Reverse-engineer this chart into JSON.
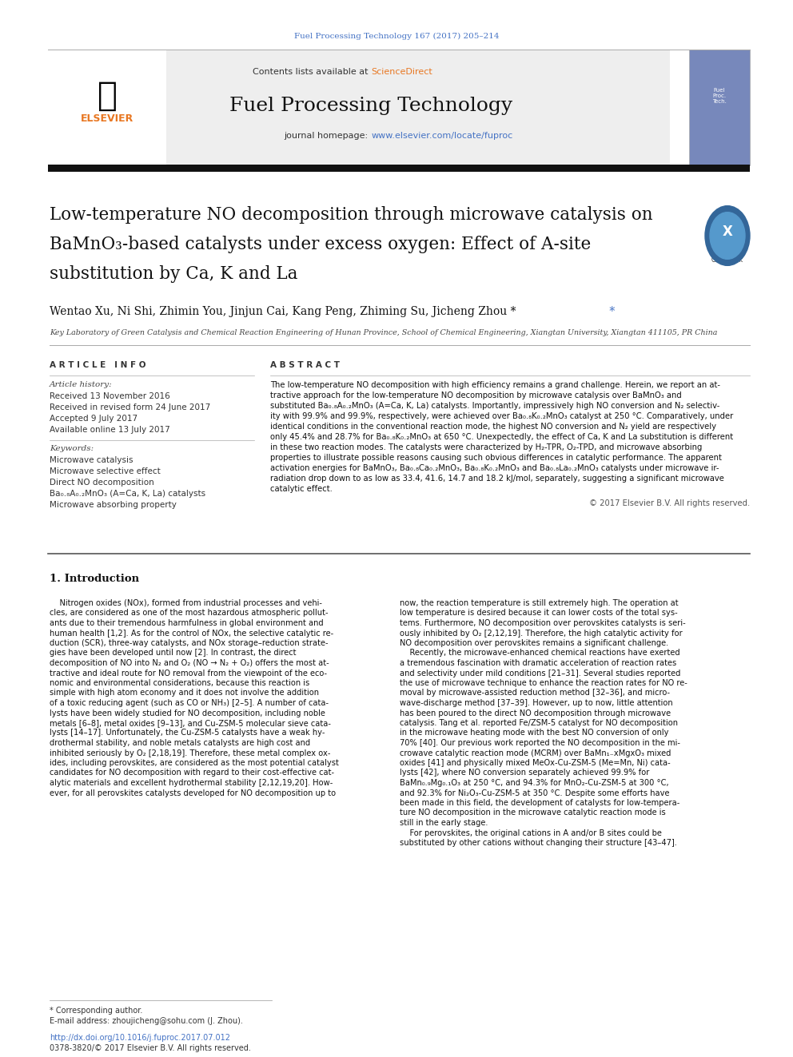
{
  "page_width": 9.92,
  "page_height": 13.23,
  "bg_color": "#ffffff",
  "journal_ref": "Fuel Processing Technology 167 (2017) 205–214",
  "journal_ref_color": "#4472c4",
  "header_bg": "#f0f0f0",
  "contents_text": "Contents lists available at ",
  "sciencedirect_text": "ScienceDirect",
  "sciencedirect_color": "#e87722",
  "journal_title": "Fuel Processing Technology",
  "journal_homepage_prefix": "journal homepage: ",
  "journal_homepage_url": "www.elsevier.com/locate/fuproc",
  "journal_homepage_color": "#4472c4",
  "elsevier_color": "#e87722",
  "paper_title_line1": "Low-temperature NO decomposition through microwave catalysis on",
  "paper_title_line2": "BaMnO₃-based catalysts under excess oxygen: Effect of A-site",
  "paper_title_line3": "substitution by Ca, K and La",
  "authors": "Wentao Xu, Ni Shi, Zhimin You, Jinjun Cai, Kang Peng, Zhiming Su, Jicheng Zhou *",
  "affiliation": "Key Laboratory of Green Catalysis and Chemical Reaction Engineering of Hunan Province, School of Chemical Engineering, Xiangtan University, Xiangtan 411105, PR China",
  "article_info_header": "A R T I C L E   I N F O",
  "article_history_label": "Article history:",
  "received_text": "Received 13 November 2016",
  "revised_text": "Received in revised form 24 June 2017",
  "accepted_text": "Accepted 9 July 2017",
  "online_text": "Available online 13 July 2017",
  "keywords_label": "Keywords:",
  "keyword1": "Microwave catalysis",
  "keyword2": "Microwave selective effect",
  "keyword3": "Direct NO decomposition",
  "keyword4": "Ba₀.₈A₀.₂MnO₃ (A=Ca, K, La) catalysts",
  "keyword5": "Microwave absorbing property",
  "abstract_header": "A B S T R A C T",
  "copyright_text": "© 2017 Elsevier B.V. All rights reserved.",
  "section1_title": "1. Introduction",
  "footnote_star": "* Corresponding author.",
  "footnote_email": "E-mail address: zhoujicheng@sohu.com (J. Zhou).",
  "doi_text": "http://dx.doi.org/10.1016/j.fuproc.2017.07.012",
  "issn_text": "0378-3820/© 2017 Elsevier B.V. All rights reserved.",
  "abstract_lines": [
    "The low-temperature NO decomposition with high efficiency remains a grand challenge. Herein, we report an at-",
    "tractive approach for the low-temperature NO decomposition by microwave catalysis over BaMnO₃ and",
    "substituted Ba₀.₈A₀.₂MnO₃ (A=Ca, K, La) catalysts. Importantly, impressively high NO conversion and N₂ selectiv-",
    "ity with 99.9% and 99.9%, respectively, were achieved over Ba₀.₈K₀.₂MnO₃ catalyst at 250 °C. Comparatively, under",
    "identical conditions in the conventional reaction mode, the highest NO conversion and N₂ yield are respectively",
    "only 45.4% and 28.7% for Ba₀.₈K₀.₂MnO₃ at 650 °C. Unexpectedly, the effect of Ca, K and La substitution is different",
    "in these two reaction modes. The catalysts were characterized by H₂-TPR, O₂-TPD, and microwave absorbing",
    "properties to illustrate possible reasons causing such obvious differences in catalytic performance. The apparent",
    "activation energies for BaMnO₃, Ba₀.₈Ca₀.₂MnO₃, Ba₀.₈K₀.₂MnO₃ and Ba₀.₈La₀.₂MnO₃ catalysts under microwave ir-",
    "radiation drop down to as low as 33.4, 41.6, 14.7 and 18.2 kJ/mol, separately, suggesting a significant microwave",
    "catalytic effect."
  ],
  "intro_col1_lines": [
    "    Nitrogen oxides (NOx), formed from industrial processes and vehi-",
    "cles, are considered as one of the most hazardous atmospheric pollut-",
    "ants due to their tremendous harmfulness in global environment and",
    "human health [1,2]. As for the control of NOx, the selective catalytic re-",
    "duction (SCR), three-way catalysts, and NOx storage–reduction strate-",
    "gies have been developed until now [2]. In contrast, the direct",
    "decomposition of NO into N₂ and O₂ (NO → N₂ + O₂) offers the most at-",
    "tractive and ideal route for NO removal from the viewpoint of the eco-",
    "nomic and environmental considerations, because this reaction is",
    "simple with high atom economy and it does not involve the addition",
    "of a toxic reducing agent (such as CO or NH₃) [2–5]. A number of cata-",
    "lysts have been widely studied for NO decomposition, including noble",
    "metals [6–8], metal oxides [9–13], and Cu-ZSM-5 molecular sieve cata-",
    "lysts [14–17]. Unfortunately, the Cu-ZSM-5 catalysts have a weak hy-",
    "drothermal stability, and noble metals catalysts are high cost and",
    "inhibited seriously by O₂ [2,18,19]. Therefore, these metal complex ox-",
    "ides, including perovskites, are considered as the most potential catalyst",
    "candidates for NO decomposition with regard to their cost-effective cat-",
    "alytic materials and excellent hydrothermal stability [2,12,19,20]. How-",
    "ever, for all perovskites catalysts developed for NO decomposition up to"
  ],
  "intro_col2_lines": [
    "now, the reaction temperature is still extremely high. The operation at",
    "low temperature is desired because it can lower costs of the total sys-",
    "tems. Furthermore, NO decomposition over perovskites catalysts is seri-",
    "ously inhibited by O₂ [2,12,19]. Therefore, the high catalytic activity for",
    "NO decomposition over perovskites remains a significant challenge.",
    "    Recently, the microwave-enhanced chemical reactions have exerted",
    "a tremendous fascination with dramatic acceleration of reaction rates",
    "and selectivity under mild conditions [21–31]. Several studies reported",
    "the use of microwave technique to enhance the reaction rates for NO re-",
    "moval by microwave-assisted reduction method [32–36], and micro-",
    "wave-discharge method [37–39]. However, up to now, little attention",
    "has been poured to the direct NO decomposition through microwave",
    "catalysis. Tang et al. reported Fe/ZSM-5 catalyst for NO decomposition",
    "in the microwave heating mode with the best NO conversion of only",
    "70% [40]. Our previous work reported the NO decomposition in the mi-",
    "crowave catalytic reaction mode (MCRM) over BaMn₁₋xMgxO₃ mixed",
    "oxides [41] and physically mixed MeOx-Cu-ZSM-5 (Me=Mn, Ni) cata-",
    "lysts [42], where NO conversion separately achieved 99.9% for",
    "BaMn₀.₉Mg₀.₁O₃ at 250 °C, and 94.3% for MnO₂-Cu-ZSM-5 at 300 °C,",
    "and 92.3% for Ni₂O₃-Cu-ZSM-5 at 350 °C. Despite some efforts have",
    "been made in this field, the development of catalysts for low-tempera-",
    "ture NO decomposition in the microwave catalytic reaction mode is",
    "still in the early stage.",
    "    For perovskites, the original cations in A and/or B sites could be",
    "substituted by other cations without changing their structure [43–47]."
  ]
}
